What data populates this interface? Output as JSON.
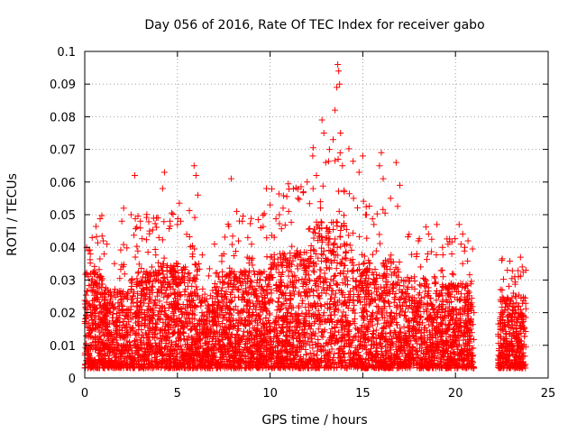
{
  "chart_data": {
    "type": "scatter",
    "title": "Day 056 of 2016, Rate Of TEC Index for receiver gabo",
    "xlabel": "GPS time / hours",
    "ylabel": "ROTI / TECUs",
    "xlim": [
      0,
      25
    ],
    "ylim": [
      0,
      0.1
    ],
    "xticks": [
      0,
      5,
      10,
      15,
      20,
      25
    ],
    "xtick_labels": [
      "0",
      "5",
      "10",
      "15",
      "20",
      "25"
    ],
    "yticks": [
      0,
      0.01,
      0.02,
      0.03,
      0.04,
      0.05,
      0.06,
      0.07,
      0.08,
      0.09,
      0.1
    ],
    "ytick_labels": [
      "0",
      "0.01",
      "0.02",
      "0.03",
      "0.04",
      "0.05",
      "0.06",
      "0.07",
      "0.08",
      "0.09",
      "0.1"
    ],
    "grid": true,
    "marker": "+",
    "color": "#ff0000",
    "series": [
      {
        "values_description": "dense ROTI cloud; baseline ~0.005-0.02, data gap ~21-22.3 h",
        "points": [
          [
            0.1,
            0.04
          ],
          [
            0.2,
            0.039
          ],
          [
            0.3,
            0.038
          ],
          [
            0.4,
            0.043
          ],
          [
            0.2,
            0.031
          ],
          [
            0.5,
            0.029
          ],
          [
            1.0,
            0.042
          ],
          [
            1.2,
            0.041
          ],
          [
            1.6,
            0.035
          ],
          [
            2.0,
            0.048
          ],
          [
            2.1,
            0.052
          ],
          [
            2.5,
            0.05
          ],
          [
            2.7,
            0.062
          ],
          [
            3.0,
            0.048
          ],
          [
            3.5,
            0.045
          ],
          [
            4.0,
            0.043
          ],
          [
            4.2,
            0.058
          ],
          [
            4.3,
            0.063
          ],
          [
            4.6,
            0.048
          ],
          [
            5.0,
            0.047
          ],
          [
            5.5,
            0.044
          ],
          [
            5.9,
            0.065
          ],
          [
            6.0,
            0.062
          ],
          [
            6.1,
            0.056
          ],
          [
            7.0,
            0.041
          ],
          [
            7.5,
            0.038
          ],
          [
            7.9,
            0.061
          ],
          [
            8.2,
            0.051
          ],
          [
            8.5,
            0.048
          ],
          [
            9.0,
            0.041
          ],
          [
            9.5,
            0.046
          ],
          [
            9.8,
            0.058
          ],
          [
            10.0,
            0.053
          ],
          [
            10.5,
            0.05
          ],
          [
            10.7,
            0.052
          ],
          [
            11.0,
            0.051
          ],
          [
            11.5,
            0.055
          ],
          [
            11.8,
            0.057
          ],
          [
            12.0,
            0.06
          ],
          [
            12.3,
            0.068
          ],
          [
            12.5,
            0.062
          ],
          [
            12.8,
            0.079
          ],
          [
            12.9,
            0.075
          ],
          [
            13.0,
            0.066
          ],
          [
            13.2,
            0.07
          ],
          [
            13.4,
            0.073
          ],
          [
            13.5,
            0.082
          ],
          [
            13.6,
            0.089
          ],
          [
            13.65,
            0.096
          ],
          [
            13.7,
            0.094
          ],
          [
            13.75,
            0.09
          ],
          [
            13.8,
            0.075
          ],
          [
            13.9,
            0.065
          ],
          [
            14.0,
            0.057
          ],
          [
            14.5,
            0.055
          ],
          [
            14.8,
            0.063
          ],
          [
            15.0,
            0.068
          ],
          [
            15.2,
            0.05
          ],
          [
            15.6,
            0.047
          ],
          [
            15.9,
            0.065
          ],
          [
            16.0,
            0.069
          ],
          [
            16.1,
            0.061
          ],
          [
            16.5,
            0.055
          ],
          [
            16.8,
            0.066
          ],
          [
            17.0,
            0.059
          ],
          [
            17.5,
            0.044
          ],
          [
            18.0,
            0.042
          ],
          [
            18.5,
            0.038
          ],
          [
            19.0,
            0.047
          ],
          [
            19.3,
            0.04
          ],
          [
            19.8,
            0.038
          ],
          [
            20.2,
            0.047
          ],
          [
            20.5,
            0.04
          ],
          [
            20.8,
            0.022
          ],
          [
            21.0,
            0.02
          ],
          [
            22.5,
            0.036
          ],
          [
            22.8,
            0.033
          ],
          [
            23.2,
            0.031
          ],
          [
            23.6,
            0.034
          ],
          [
            23.8,
            0.033
          ]
        ]
      }
    ]
  }
}
